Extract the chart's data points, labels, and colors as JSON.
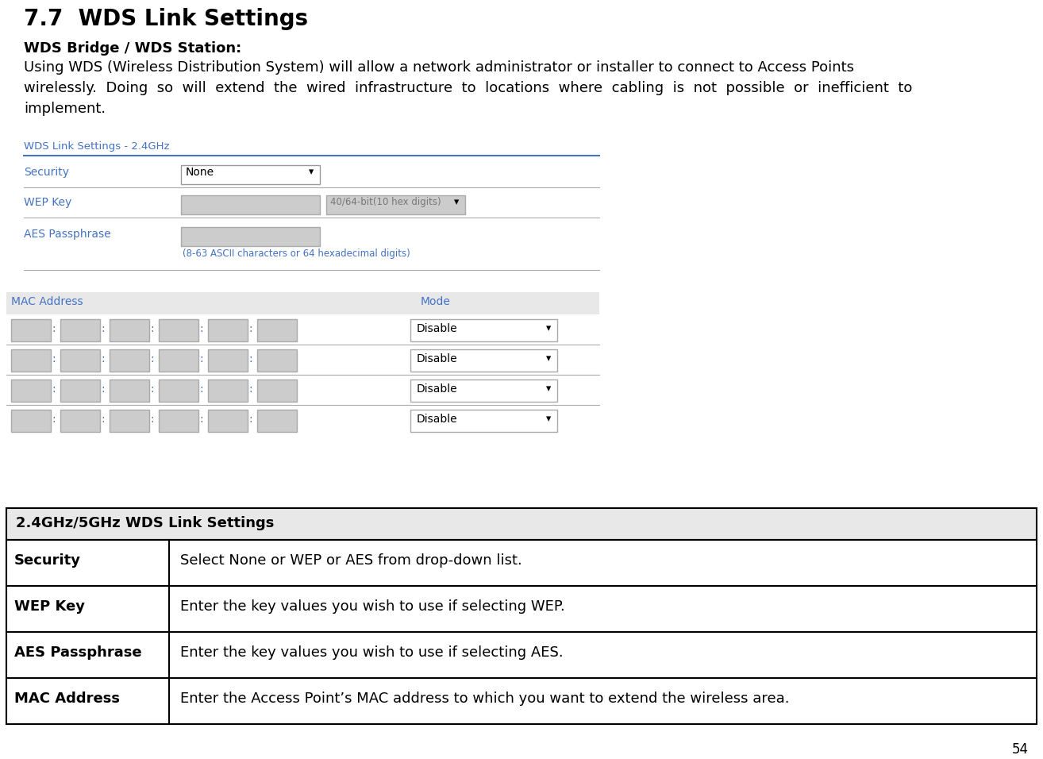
{
  "title": "7.7  WDS Link Settings",
  "subtitle": "WDS Bridge / WDS Station:",
  "body_line1": "Using WDS (Wireless Distribution System) will allow a network administrator or installer to connect to Access Points",
  "body_line2": "wirelessly.  Doing  so  will  extend  the  wired  infrastructure  to  locations  where  cabling  is  not  possible  or  inefficient  to",
  "body_line3": "implement.",
  "wds_label": "WDS Link Settings - 2.4GHz",
  "wds_label_color": "#4472C4",
  "security_label": "Security",
  "security_color": "#4472C4",
  "wep_label": "WEP Key",
  "wep_color": "#4472C4",
  "aes_label": "AES Passphrase",
  "aes_color": "#4472C4",
  "none_text": "None",
  "wep_bits_text": "40/64-bit(10 hex digits)",
  "aes_hint": "(8-63 ASCII characters or 64 hexadecimal digits)",
  "aes_hint_color": "#4472C4",
  "mac_addr_label": "MAC Address",
  "mac_addr_color": "#4472C4",
  "mode_label": "Mode",
  "mode_color": "#4472C4",
  "disable_text": "Disable",
  "num_mac_rows": 4,
  "num_mac_fields": 6,
  "table_header": "2.4GHz/5GHz WDS Link Settings",
  "table_rows": [
    {
      "key": "Security",
      "value": "Select None or WEP or AES from drop-down list."
    },
    {
      "key": "WEP Key",
      "value": "Enter the key values you wish to use if selecting WEP."
    },
    {
      "key": "AES Passphrase",
      "value": "Enter the key values you wish to use if selecting AES."
    },
    {
      "key": "MAC Address",
      "value": "Enter the Access Point’s MAC address to which you want to extend the wireless area."
    }
  ],
  "page_number": "54",
  "bg_color": "#ffffff",
  "gray_bg": "#e8e8e8",
  "light_gray": "#cccccc",
  "line_color": "#4472C4",
  "table_border": "#000000",
  "separator_color": "#aaaaaa"
}
